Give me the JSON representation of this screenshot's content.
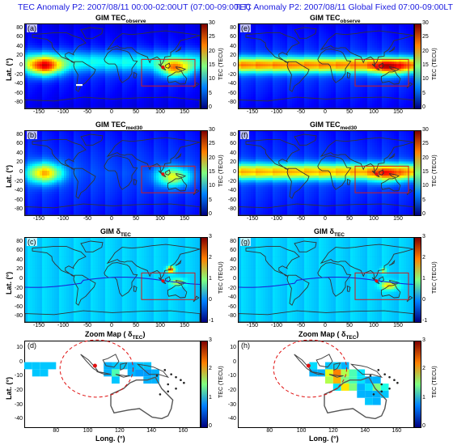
{
  "titles": {
    "left": "TEC Anomaly P2: 2007/08/11 00:00-02:00UT (07:00-09:00LT)",
    "right": "TEC Anomaly P2: 2007/08/11 Global Fixed 07:00-09:00LT"
  },
  "panels": {
    "a": {
      "label": "(a)",
      "title_main": "GIM TEC",
      "title_sub": "observe"
    },
    "b": {
      "label": "(b)",
      "title_main": "GIM TEC",
      "title_sub": "med30"
    },
    "c": {
      "label": "(c)",
      "title_main": "GIM δ",
      "title_sub": "TEC"
    },
    "d": {
      "label": "(d)",
      "title_main": "Zoom Map ( δ",
      "title_sub": "TEC",
      "title_end": ")"
    },
    "e": {
      "label": "(e)",
      "title_main": "GIM TEC",
      "title_sub": "observe"
    },
    "f": {
      "label": "(f)",
      "title_main": "GIM TEC",
      "title_sub": "med30"
    },
    "g": {
      "label": "(g)",
      "title_main": "GIM δ",
      "title_sub": "TEC"
    },
    "h": {
      "label": "(h)",
      "title_main": "Zoom Map ( δ",
      "title_sub": "TEC",
      "title_end": ")"
    }
  },
  "axes": {
    "lat_label": "Lat. (°)",
    "long_label": "Long. (°)",
    "global_yticks": [
      "80",
      "60",
      "40",
      "20",
      "0",
      "-20",
      "-40",
      "-60",
      "-80"
    ],
    "global_xticks": [
      "-150",
      "-100",
      "-50",
      "0",
      "50",
      "100",
      "150"
    ],
    "zoom_yticks": [
      "10",
      "0",
      "-10",
      "-20",
      "-30",
      "-40"
    ],
    "zoom_xticks": [
      "80",
      "100",
      "120",
      "140",
      "160"
    ],
    "tec_cbar_ticks": [
      "30",
      "25",
      "20",
      "15",
      "10",
      "5",
      "0"
    ],
    "delta_cbar_ticks": [
      "3",
      "2",
      "1",
      "0",
      "-1"
    ],
    "zoom_cbar_ticks": [
      "3",
      "2",
      "1",
      "0"
    ],
    "cbar_title": "TEC (TECU)"
  },
  "colors": {
    "ocean_base": "#1e5fc9",
    "title_blue": "#1a1adf",
    "box_red": "#d11a1a"
  }
}
